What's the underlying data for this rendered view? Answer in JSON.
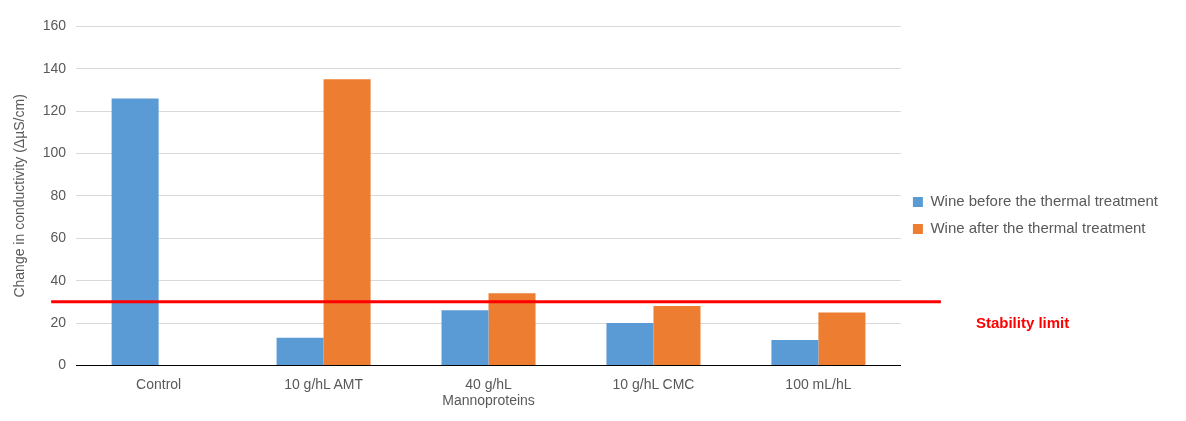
{
  "chart_data": {
    "type": "bar",
    "ylabel": "Change in conductivity (ΔµS/cm)",
    "categories": [
      "Control",
      "10 g/hL AMT",
      "40 g/hL Mannoproteins",
      "10 g/hL CMC",
      "100 mL/hL"
    ],
    "series": [
      {
        "name": "Wine before the thermal treatment",
        "color": "#5b9bd5",
        "values": [
          126,
          13,
          26,
          20,
          12
        ]
      },
      {
        "name": "Wine after the thermal treatment",
        "color": "#ed7d31",
        "values": [
          null,
          135,
          34,
          28,
          25
        ]
      }
    ],
    "ylim": [
      0,
      160
    ],
    "yticks": [
      0,
      20,
      40,
      60,
      80,
      100,
      120,
      140,
      160
    ],
    "grid": "y",
    "legend": "right",
    "ref_lines": [
      {
        "axis": "y",
        "value": 30,
        "label": "Stability limit",
        "color": "#ff0000"
      }
    ]
  }
}
